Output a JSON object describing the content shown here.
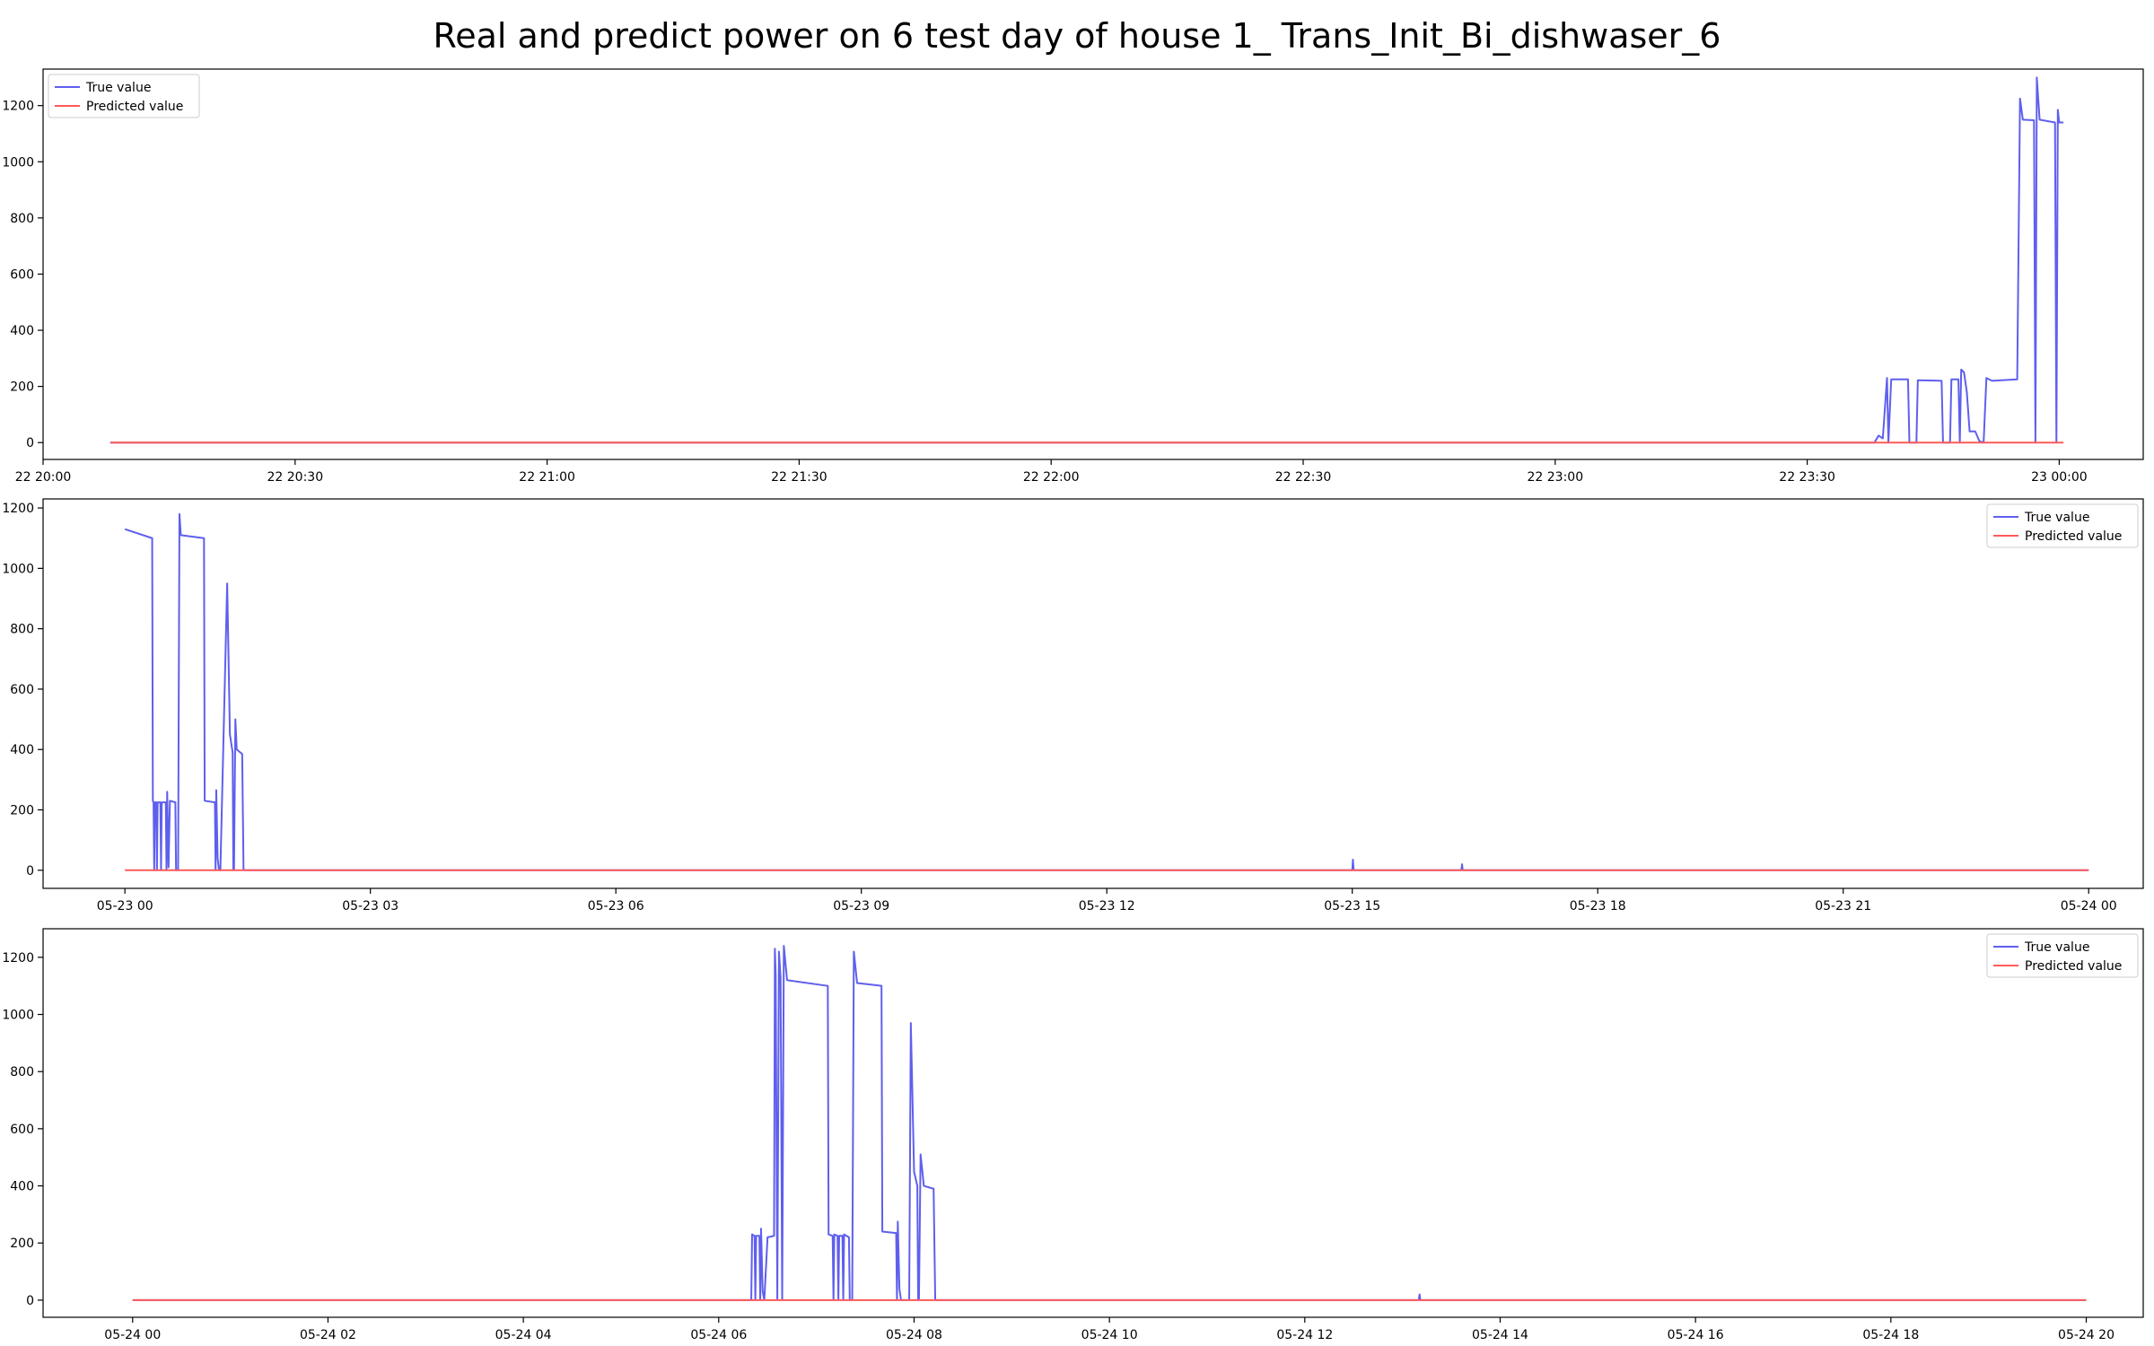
{
  "title": "Real and predict power on 6 test day of house 1_ Trans_Init_Bi_dishwaser_6",
  "colors": {
    "true_value": "#5f5fee",
    "predicted_value": "#ff5a5a"
  },
  "chart_data": [
    {
      "type": "line",
      "legend_position": "upper left",
      "ylim": [
        -60,
        1330
      ],
      "xlim": [
        "2013-05-22 20:00",
        "2013-05-23 00:10"
      ],
      "yticks": [
        0,
        200,
        400,
        600,
        800,
        1000,
        1200
      ],
      "xticks": [
        {
          "x": "2013-05-22 20:00",
          "label": "22 20:00"
        },
        {
          "x": "2013-05-22 20:30",
          "label": "22 20:30"
        },
        {
          "x": "2013-05-22 21:00",
          "label": "22 21:00"
        },
        {
          "x": "2013-05-22 21:30",
          "label": "22 21:30"
        },
        {
          "x": "2013-05-22 22:00",
          "label": "22 22:00"
        },
        {
          "x": "2013-05-22 22:30",
          "label": "22 22:30"
        },
        {
          "x": "2013-05-22 23:00",
          "label": "22 23:00"
        },
        {
          "x": "2013-05-22 23:30",
          "label": "22 23:30"
        },
        {
          "x": "2013-05-23 00:00",
          "label": "23 00:00"
        }
      ],
      "series": [
        {
          "name": "True value",
          "points": [
            [
              "2013-05-22 20:08",
              0
            ],
            [
              "2013-05-22 23:38",
              0
            ],
            [
              "2013-05-22 23:38:30",
              25
            ],
            [
              "2013-05-22 23:39",
              15
            ],
            [
              "2013-05-22 23:39:30",
              230
            ],
            [
              "2013-05-22 23:39:40",
              0
            ],
            [
              "2013-05-22 23:40",
              225
            ],
            [
              "2013-05-22 23:42",
              225
            ],
            [
              "2013-05-22 23:42:10",
              0
            ],
            [
              "2013-05-22 23:43",
              0
            ],
            [
              "2013-05-22 23:43:10",
              222
            ],
            [
              "2013-05-22 23:46",
              220
            ],
            [
              "2013-05-22 23:46:10",
              0
            ],
            [
              "2013-05-22 23:47",
              0
            ],
            [
              "2013-05-22 23:47:10",
              225
            ],
            [
              "2013-05-22 23:48",
              225
            ],
            [
              "2013-05-22 23:48:10",
              0
            ],
            [
              "2013-05-22 23:48:20",
              260
            ],
            [
              "2013-05-22 23:48:40",
              250
            ],
            [
              "2013-05-22 23:49",
              180
            ],
            [
              "2013-05-22 23:49:20",
              40
            ],
            [
              "2013-05-22 23:50",
              40
            ],
            [
              "2013-05-22 23:50:30",
              5
            ],
            [
              "2013-05-22 23:51",
              0
            ],
            [
              "2013-05-22 23:51:20",
              230
            ],
            [
              "2013-05-22 23:52",
              220
            ],
            [
              "2013-05-22 23:55",
              225
            ],
            [
              "2013-05-22 23:55:20",
              1225
            ],
            [
              "2013-05-22 23:55:40",
              1150
            ],
            [
              "2013-05-22 23:57",
              1148
            ],
            [
              "2013-05-22 23:57:10",
              0
            ],
            [
              "2013-05-22 23:57:20",
              1300
            ],
            [
              "2013-05-22 23:57:40",
              1150
            ],
            [
              "2013-05-22 23:59:30",
              1140
            ],
            [
              "2013-05-22 23:59:40",
              0
            ],
            [
              "2013-05-22 23:59:50",
              1185
            ],
            [
              "2013-05-23 00:00",
              1140
            ],
            [
              "2013-05-23 00:00:30",
              1140
            ]
          ]
        },
        {
          "name": "Predicted value",
          "points": [
            [
              "2013-05-22 20:08",
              0
            ],
            [
              "2013-05-23 00:00:30",
              0
            ]
          ]
        }
      ]
    },
    {
      "type": "line",
      "legend_position": "upper right",
      "ylim": [
        -60,
        1230
      ],
      "xlim": [
        "2013-05-22 23:00",
        "2013-05-24 00:40"
      ],
      "yticks": [
        0,
        200,
        400,
        600,
        800,
        1000,
        1200
      ],
      "xticks": [
        {
          "x": "2013-05-23 00:00",
          "label": "05-23 00"
        },
        {
          "x": "2013-05-23 03:00",
          "label": "05-23 03"
        },
        {
          "x": "2013-05-23 06:00",
          "label": "05-23 06"
        },
        {
          "x": "2013-05-23 09:00",
          "label": "05-23 09"
        },
        {
          "x": "2013-05-23 12:00",
          "label": "05-23 12"
        },
        {
          "x": "2013-05-23 15:00",
          "label": "05-23 15"
        },
        {
          "x": "2013-05-23 18:00",
          "label": "05-23 18"
        },
        {
          "x": "2013-05-23 21:00",
          "label": "05-23 21"
        },
        {
          "x": "2013-05-24 00:00",
          "label": "05-24 00"
        }
      ],
      "series": [
        {
          "name": "True value",
          "points": [
            [
              "2013-05-23 00:00",
              1130
            ],
            [
              "2013-05-23 00:20",
              1100
            ],
            [
              "2013-05-23 00:20:30",
              230
            ],
            [
              "2013-05-23 00:21",
              225
            ],
            [
              "2013-05-23 00:21:30",
              0
            ],
            [
              "2013-05-23 00:22",
              225
            ],
            [
              "2013-05-23 00:23",
              225
            ],
            [
              "2013-05-23 00:23:30",
              0
            ],
            [
              "2013-05-23 00:24",
              225
            ],
            [
              "2013-05-23 00:26",
              225
            ],
            [
              "2013-05-23 00:26:30",
              0
            ],
            [
              "2013-05-23 00:27",
              225
            ],
            [
              "2013-05-23 00:30",
              225
            ],
            [
              "2013-05-23 00:30:30",
              0
            ],
            [
              "2013-05-23 00:31",
              260
            ],
            [
              "2013-05-23 00:32",
              10
            ],
            [
              "2013-05-23 00:33",
              230
            ],
            [
              "2013-05-23 00:37",
              225
            ],
            [
              "2013-05-23 00:37:30",
              0
            ],
            [
              "2013-05-23 00:38",
              0
            ],
            [
              "2013-05-23 00:39",
              0
            ],
            [
              "2013-05-23 00:40",
              1180
            ],
            [
              "2013-05-23 00:41",
              1110
            ],
            [
              "2013-05-23 00:58",
              1100
            ],
            [
              "2013-05-23 00:58:30",
              230
            ],
            [
              "2013-05-23 01:06",
              225
            ],
            [
              "2013-05-23 01:06:30",
              0
            ],
            [
              "2013-05-23 01:07",
              265
            ],
            [
              "2013-05-23 01:08",
              40
            ],
            [
              "2013-05-23 01:09",
              0
            ],
            [
              "2013-05-23 01:10",
              0
            ],
            [
              "2013-05-23 01:15",
              950
            ],
            [
              "2013-05-23 01:17",
              450
            ],
            [
              "2013-05-23 01:19",
              390
            ],
            [
              "2013-05-23 01:19:30",
              0
            ],
            [
              "2013-05-23 01:20",
              0
            ],
            [
              "2013-05-23 01:21",
              500
            ],
            [
              "2013-05-23 01:22",
              400
            ],
            [
              "2013-05-23 01:26",
              385
            ],
            [
              "2013-05-23 01:27",
              0
            ],
            [
              "2013-05-23 15:00",
              0
            ],
            [
              "2013-05-23 15:00:30",
              35
            ],
            [
              "2013-05-23 15:01",
              0
            ],
            [
              "2013-05-23 16:20",
              0
            ],
            [
              "2013-05-23 16:20:30",
              20
            ],
            [
              "2013-05-23 16:21",
              0
            ],
            [
              "2013-05-24 00:00",
              0
            ]
          ]
        },
        {
          "name": "Predicted value",
          "points": [
            [
              "2013-05-23 00:00",
              0
            ],
            [
              "2013-05-24 00:00",
              0
            ]
          ]
        }
      ]
    },
    {
      "type": "line",
      "legend_position": "upper right",
      "ylim": [
        -60,
        1300
      ],
      "xlim": [
        "2013-05-23 23:05",
        "2013-05-24 20:35"
      ],
      "yticks": [
        0,
        200,
        400,
        600,
        800,
        1000,
        1200
      ],
      "xticks": [
        {
          "x": "2013-05-24 00:00",
          "label": "05-24 00"
        },
        {
          "x": "2013-05-24 02:00",
          "label": "05-24 02"
        },
        {
          "x": "2013-05-24 04:00",
          "label": "05-24 04"
        },
        {
          "x": "2013-05-24 06:00",
          "label": "05-24 06"
        },
        {
          "x": "2013-05-24 08:00",
          "label": "05-24 08"
        },
        {
          "x": "2013-05-24 10:00",
          "label": "05-24 10"
        },
        {
          "x": "2013-05-24 12:00",
          "label": "05-24 12"
        },
        {
          "x": "2013-05-24 14:00",
          "label": "05-24 14"
        },
        {
          "x": "2013-05-24 16:00",
          "label": "05-24 16"
        },
        {
          "x": "2013-05-24 18:00",
          "label": "05-24 18"
        },
        {
          "x": "2013-05-24 20:00",
          "label": "05-24 20"
        }
      ],
      "series": [
        {
          "name": "True value",
          "points": [
            [
              "2013-05-24 00:00",
              0
            ],
            [
              "2013-05-24 06:20",
              0
            ],
            [
              "2013-05-24 06:20:30",
              230
            ],
            [
              "2013-05-24 06:22",
              225
            ],
            [
              "2013-05-24 06:22:30",
              0
            ],
            [
              "2013-05-24 06:23",
              225
            ],
            [
              "2013-05-24 06:25",
              225
            ],
            [
              "2013-05-24 06:25:30",
              0
            ],
            [
              "2013-05-24 06:26",
              250
            ],
            [
              "2013-05-24 06:27",
              30
            ],
            [
              "2013-05-24 06:28",
              0
            ],
            [
              "2013-05-24 06:30",
              220
            ],
            [
              "2013-05-24 06:34",
              225
            ],
            [
              "2013-05-24 06:34:30",
              1230
            ],
            [
              "2013-05-24 06:35",
              1140
            ],
            [
              "2013-05-24 06:36",
              0
            ],
            [
              "2013-05-24 06:37",
              1220
            ],
            [
              "2013-05-24 06:38",
              1130
            ],
            [
              "2013-05-24 06:39",
              0
            ],
            [
              "2013-05-24 06:40",
              1240
            ],
            [
              "2013-05-24 06:42",
              1120
            ],
            [
              "2013-05-24 07:07",
              1100
            ],
            [
              "2013-05-24 07:07:30",
              230
            ],
            [
              "2013-05-24 07:10",
              225
            ],
            [
              "2013-05-24 07:10:30",
              0
            ],
            [
              "2013-05-24 07:11",
              230
            ],
            [
              "2013-05-24 07:13",
              225
            ],
            [
              "2013-05-24 07:13:30",
              0
            ],
            [
              "2013-05-24 07:14",
              225
            ],
            [
              "2013-05-24 07:16",
              225
            ],
            [
              "2013-05-24 07:16:30",
              0
            ],
            [
              "2013-05-24 07:17",
              230
            ],
            [
              "2013-05-24 07:20",
              220
            ],
            [
              "2013-05-24 07:20:30",
              0
            ],
            [
              "2013-05-24 07:22",
              0
            ],
            [
              "2013-05-24 07:23",
              1220
            ],
            [
              "2013-05-24 07:25",
              1110
            ],
            [
              "2013-05-24 07:40",
              1100
            ],
            [
              "2013-05-24 07:40:30",
              240
            ],
            [
              "2013-05-24 07:49",
              235
            ],
            [
              "2013-05-24 07:49:30",
              0
            ],
            [
              "2013-05-24 07:50",
              275
            ],
            [
              "2013-05-24 07:51",
              40
            ],
            [
              "2013-05-24 07:52",
              0
            ],
            [
              "2013-05-24 07:57",
              0
            ],
            [
              "2013-05-24 07:58",
              970
            ],
            [
              "2013-05-24 08:00",
              450
            ],
            [
              "2013-05-24 08:02",
              400
            ],
            [
              "2013-05-24 08:02:30",
              0
            ],
            [
              "2013-05-24 08:03",
              0
            ],
            [
              "2013-05-24 08:04",
              510
            ],
            [
              "2013-05-24 08:06",
              400
            ],
            [
              "2013-05-24 08:12",
              390
            ],
            [
              "2013-05-24 08:13",
              0
            ],
            [
              "2013-05-24 13:10",
              0
            ],
            [
              "2013-05-24 13:10:30",
              20
            ],
            [
              "2013-05-24 13:11",
              0
            ],
            [
              "2013-05-24 20:00",
              0
            ]
          ]
        },
        {
          "name": "Predicted value",
          "points": [
            [
              "2013-05-24 00:00",
              0
            ],
            [
              "2013-05-24 20:00",
              0
            ]
          ]
        }
      ]
    }
  ]
}
